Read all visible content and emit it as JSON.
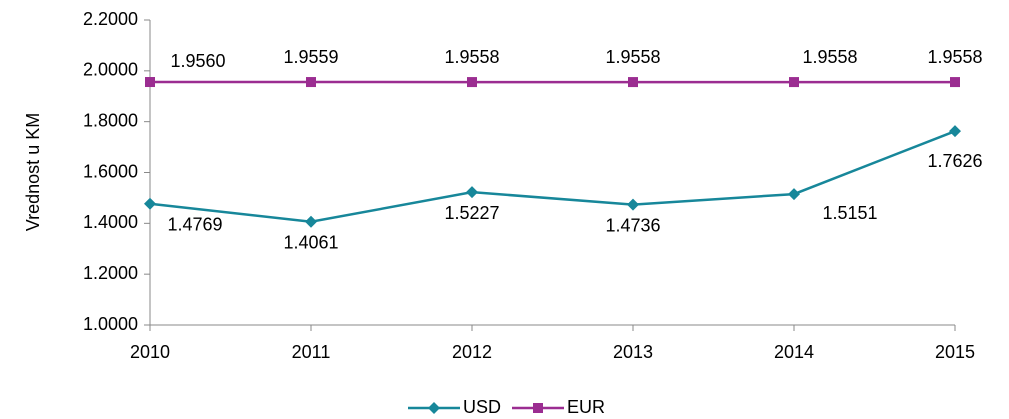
{
  "chart_data": {
    "type": "line",
    "y_label": "Vrednost u KM",
    "categories": [
      "2010",
      "2011",
      "2012",
      "2013",
      "2014",
      "2015"
    ],
    "series": [
      {
        "name": "USD",
        "color": "#17879a",
        "marker": "diamond",
        "values": [
          1.4769,
          1.4061,
          1.5227,
          1.4736,
          1.5151,
          1.7626
        ],
        "value_labels": [
          "1.4769",
          "1.4061",
          "1.5227",
          "1.4736",
          "1.5151",
          "1.7626"
        ]
      },
      {
        "name": "EUR",
        "color": "#9b2d91",
        "marker": "square",
        "values": [
          1.956,
          1.9559,
          1.9558,
          1.9558,
          1.9558,
          1.9558
        ],
        "value_labels": [
          "1.9560",
          "1.9559",
          "1.9558",
          "1.9558",
          "1.9558",
          "1.9558"
        ]
      }
    ],
    "ylim": [
      1,
      2.2
    ],
    "yticks": [
      {
        "value": 1,
        "label": "1.0000"
      },
      {
        "value": 1.2,
        "label": "1.2000"
      },
      {
        "value": 1.4,
        "label": "1.4000"
      },
      {
        "value": 1.6,
        "label": "1.6000"
      },
      {
        "value": 1.8,
        "label": "1.8000"
      },
      {
        "value": 2,
        "label": "2.0000"
      },
      {
        "value": 2.2,
        "label": "2.2000"
      }
    ],
    "grid": false,
    "legend": "bottom"
  }
}
